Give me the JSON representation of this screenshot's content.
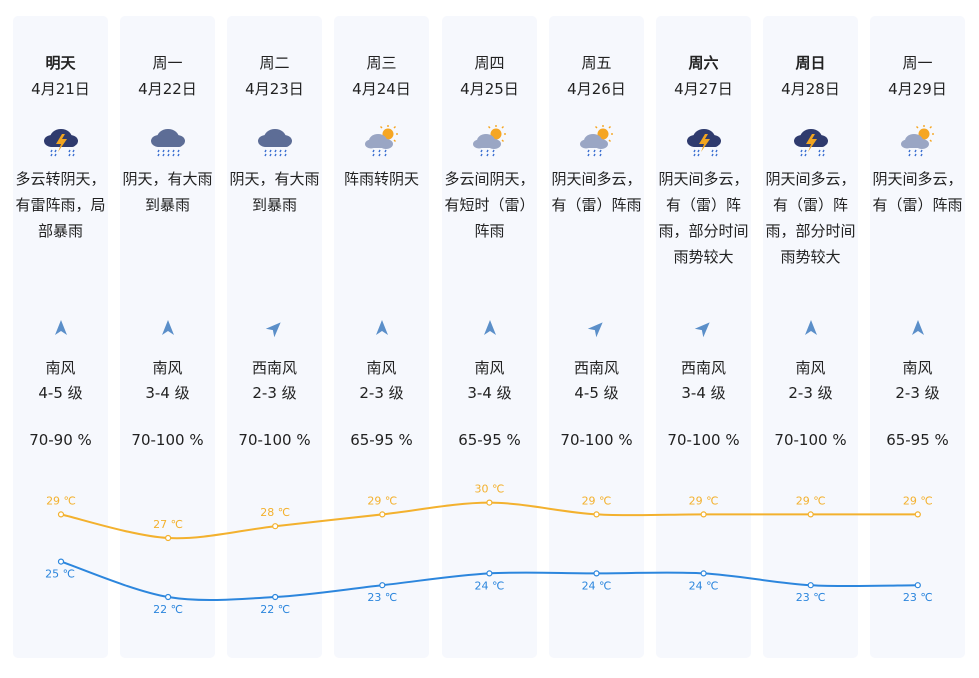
{
  "forecast": [
    {
      "weekday": "明天",
      "bold": true,
      "date": "4月21日",
      "icon": "thunderstorm-icon",
      "desc": "多云转阴天，有雷阵雨，局部暴雨",
      "wind_dir": "南风",
      "wind_level": "4-5 级",
      "humidity": "70-90 %",
      "wind_from": "S"
    },
    {
      "weekday": "周一",
      "bold": false,
      "date": "4月22日",
      "icon": "heavy-rain-icon",
      "desc": "阴天，有大雨到暴雨",
      "wind_dir": "南风",
      "wind_level": "3-4 级",
      "humidity": "70-100 %",
      "wind_from": "S"
    },
    {
      "weekday": "周二",
      "bold": false,
      "date": "4月23日",
      "icon": "heavy-rain-icon",
      "desc": "阴天，有大雨到暴雨",
      "wind_dir": "西南风",
      "wind_level": "2-3 级",
      "humidity": "70-100 %",
      "wind_from": "SW"
    },
    {
      "weekday": "周三",
      "bold": false,
      "date": "4月24日",
      "icon": "sun-rain-icon",
      "desc": "阵雨转阴天",
      "wind_dir": "南风",
      "wind_level": "2-3 级",
      "humidity": "65-95 %",
      "wind_from": "S"
    },
    {
      "weekday": "周四",
      "bold": false,
      "date": "4月25日",
      "icon": "sun-rain-icon",
      "desc": "多云间阴天，有短时（雷）阵雨",
      "wind_dir": "南风",
      "wind_level": "3-4 级",
      "humidity": "65-95 %",
      "wind_from": "S"
    },
    {
      "weekday": "周五",
      "bold": false,
      "date": "4月26日",
      "icon": "sun-rain-icon",
      "desc": "阴天间多云，有（雷）阵雨",
      "wind_dir": "西南风",
      "wind_level": "4-5 级",
      "humidity": "70-100 %",
      "wind_from": "SW"
    },
    {
      "weekday": "周六",
      "bold": true,
      "date": "4月27日",
      "icon": "thunderstorm-icon",
      "desc": "阴天间多云，有（雷）阵雨，部分时间雨势较大",
      "wind_dir": "西南风",
      "wind_level": "3-4 级",
      "humidity": "70-100 %",
      "wind_from": "SW"
    },
    {
      "weekday": "周日",
      "bold": true,
      "date": "4月28日",
      "icon": "thunderstorm-icon",
      "desc": "阴天间多云，有（雷）阵雨，部分时间雨势较大",
      "wind_dir": "南风",
      "wind_level": "2-3 级",
      "humidity": "70-100 %",
      "wind_from": "S"
    },
    {
      "weekday": "周一",
      "bold": false,
      "date": "4月29日",
      "icon": "sun-rain-icon",
      "desc": "阴天间多云，有（雷）阵雨",
      "wind_dir": "南风",
      "wind_level": "2-3 级",
      "humidity": "65-95 %",
      "wind_from": "S"
    }
  ],
  "chart_data": {
    "type": "line",
    "unit": "℃",
    "categories": [
      "4月21日",
      "4月22日",
      "4月23日",
      "4月24日",
      "4月25日",
      "4月26日",
      "4月27日",
      "4月28日",
      "4月29日"
    ],
    "series": [
      {
        "values": [
          29,
          27,
          28,
          29,
          30,
          29,
          29,
          29,
          29
        ],
        "color": "#f3b12e"
      },
      {
        "values": [
          25,
          22,
          22,
          23,
          24,
          24,
          24,
          23,
          23
        ],
        "color": "#2c86dd"
      }
    ],
    "ylim": [
      21,
      31
    ],
    "grid": false,
    "legend": "none"
  },
  "colors": {
    "card_bg": "#f6f8fd",
    "wind_arrow": "#5b8fc9",
    "high": "#f3b12e",
    "low": "#2c86dd"
  }
}
